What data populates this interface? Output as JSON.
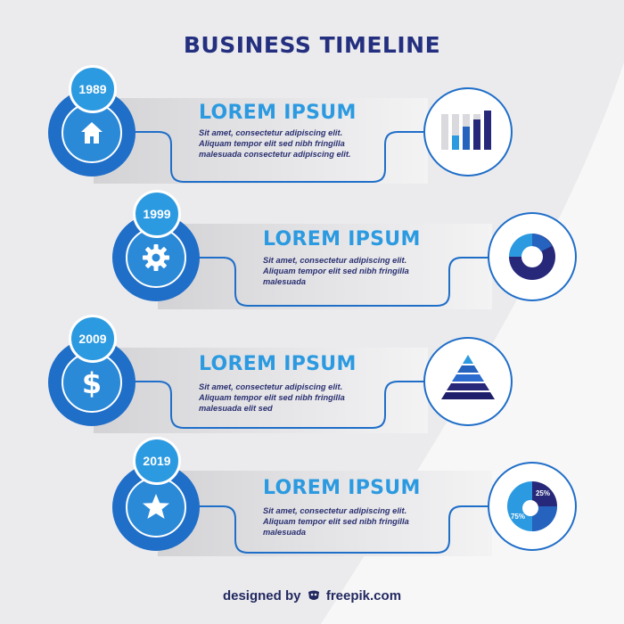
{
  "title": "BUSINESS TIMELINE",
  "colors": {
    "navy": "#24307f",
    "blue": "#1f6ec8",
    "light_blue": "#2c9ae0",
    "dark_navy": "#27287a"
  },
  "items": [
    {
      "year": "1989",
      "icon": "home-icon",
      "heading": "LOREM IPSUM",
      "lines": [
        "Sit amet, consectetur adipiscing elit.",
        "Aliquam tempor elit sed nibh fringilla",
        "malesuada consectetur adipiscing elit."
      ],
      "illustration": "bar-chart-icon"
    },
    {
      "year": "1999",
      "icon": "gear-icon",
      "heading": "LOREM IPSUM",
      "lines": [
        "Sit amet, consectetur adipiscing elit.",
        "Aliquam tempor elit sed nibh fringilla",
        "malesuada"
      ],
      "illustration": "donut-ring-icon"
    },
    {
      "year": "2009",
      "icon": "dollar-icon",
      "heading": "LOREM IPSUM",
      "lines": [
        "Sit amet, consectetur adipiscing elit.",
        "Aliquam tempor elit sed nibh fringilla",
        "malesuada elit sed"
      ],
      "illustration": "pyramid-icon"
    },
    {
      "year": "2019",
      "icon": "star-icon",
      "heading": "LOREM IPSUM",
      "lines": [
        "Sit amet, consectetur adipiscing elit.",
        "Aliquam tempor elit sed nibh fringilla",
        "malesuada"
      ],
      "illustration": "pie-chart-icon",
      "pie_labels": [
        "25%",
        "75%"
      ]
    }
  ],
  "footer": {
    "prefix": "designed by",
    "brand": "freepik.com"
  }
}
